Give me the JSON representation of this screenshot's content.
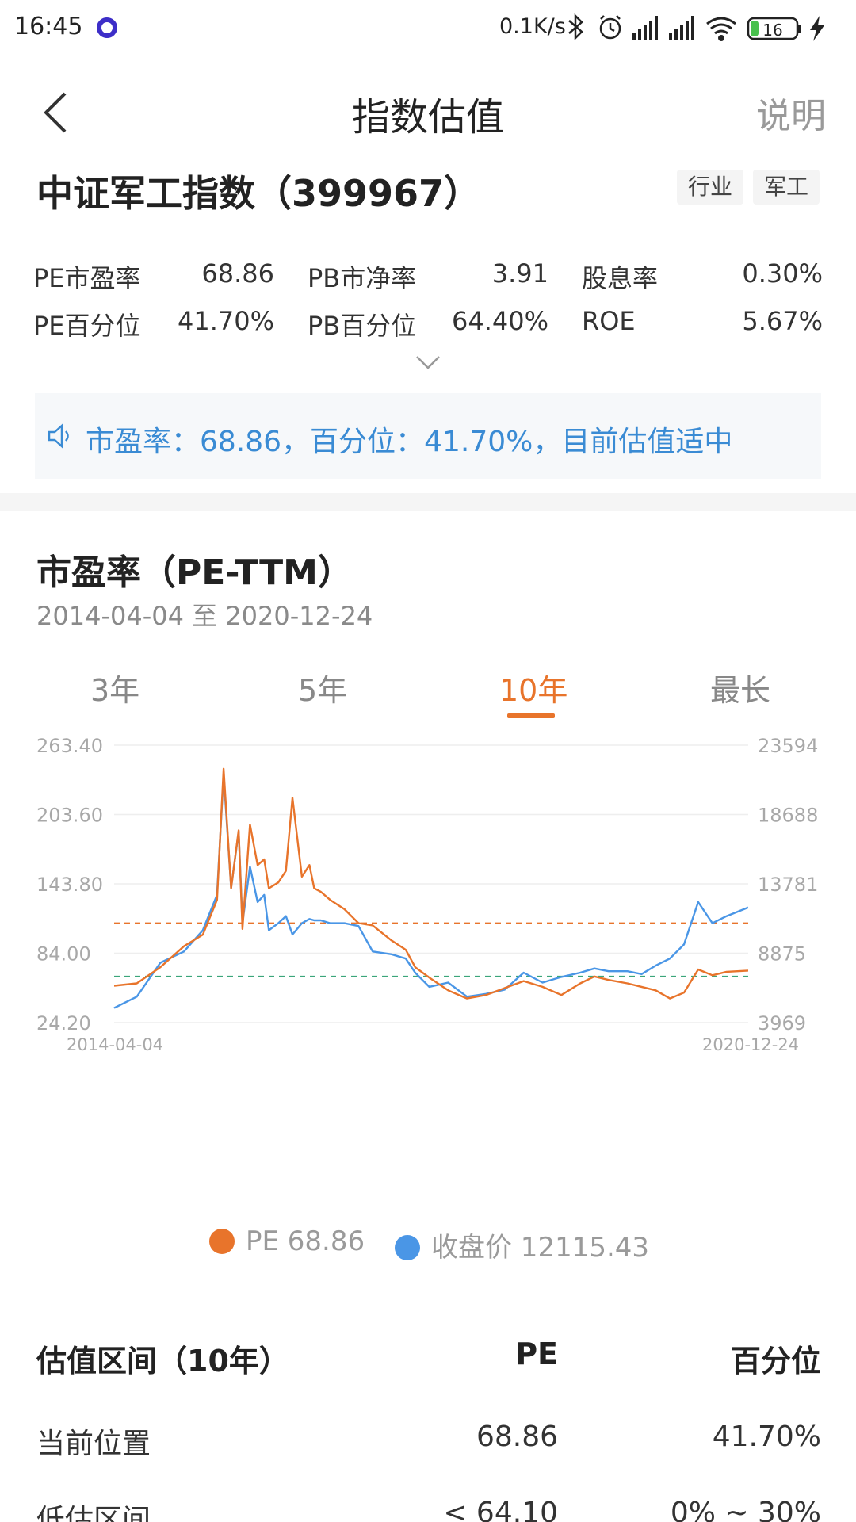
{
  "status_bar": {
    "time": "16:45",
    "net_speed": "0.1K/s",
    "battery": "16",
    "icons": [
      "bluetooth-icon",
      "alarm-icon",
      "signal-icon",
      "signal-icon",
      "wifi-icon",
      "battery-icon",
      "charging-icon"
    ]
  },
  "nav": {
    "title": "指数估值",
    "help": "说明"
  },
  "index": {
    "name": "中证军工指数（399967）",
    "tags": [
      "行业",
      "军工"
    ]
  },
  "metrics": [
    {
      "label": "PE市盈率",
      "value": "68.86"
    },
    {
      "label": "PB市净率",
      "value": "3.91"
    },
    {
      "label": "股息率",
      "value": "0.30%"
    },
    {
      "label": "PE百分位",
      "value": "41.70%"
    },
    {
      "label": "PB百分位",
      "value": "64.40%"
    },
    {
      "label": "ROE",
      "value": "5.67%"
    }
  ],
  "notice": {
    "text": "市盈率：68.86，百分位：41.70%，目前估值适中"
  },
  "pe_section": {
    "title": "市盈率（PE-TTM）",
    "range": "2014-04-04 至 2020-12-24",
    "tabs": [
      "3年",
      "5年",
      "10年",
      "最长"
    ],
    "active_tab": "10年"
  },
  "legend": {
    "pe": "PE 68.86",
    "close": "收盘价 12115.43"
  },
  "colors": {
    "pe": "#e8742b",
    "close": "#4a96e6",
    "accent": "#e8742b",
    "low_line": "#3aa57a",
    "notice_text": "#3a8bd4"
  },
  "chart_data": {
    "type": "line",
    "x_start": "2014-04-04",
    "x_end": "2020-12-24",
    "y_left_ticks": [
      "263.40",
      "203.60",
      "143.80",
      "84.00",
      "24.20"
    ],
    "y_right_ticks": [
      "23594",
      "18688",
      "13781",
      "8875",
      "3969"
    ],
    "y_left_range": [
      24.2,
      263.4
    ],
    "y_right_range": [
      3969,
      23594
    ],
    "reference_lines": [
      {
        "value": 110,
        "color": "#e8742b"
      },
      {
        "value": 64.1,
        "color": "#3aa57a"
      }
    ],
    "series": [
      {
        "name": "PE",
        "axis": "left",
        "x": [
          2014.26,
          2014.5,
          2014.75,
          2015.0,
          2015.2,
          2015.35,
          2015.42,
          2015.5,
          2015.58,
          2015.62,
          2015.7,
          2015.78,
          2015.85,
          2015.9,
          2016.0,
          2016.08,
          2016.15,
          2016.25,
          2016.33,
          2016.38,
          2016.45,
          2016.55,
          2016.7,
          2016.85,
          2017.0,
          2017.2,
          2017.35,
          2017.45,
          2017.6,
          2017.8,
          2018.0,
          2018.2,
          2018.4,
          2018.6,
          2018.8,
          2019.0,
          2019.2,
          2019.35,
          2019.5,
          2019.7,
          2019.85,
          2020.0,
          2020.15,
          2020.3,
          2020.45,
          2020.6,
          2020.75,
          2020.98
        ],
        "values": [
          56,
          58,
          72,
          90,
          100,
          130,
          243,
          140,
          190,
          105,
          195,
          160,
          165,
          140,
          145,
          155,
          218,
          150,
          160,
          140,
          137,
          130,
          122,
          110,
          108,
          95,
          87,
          72,
          63,
          52,
          45,
          48,
          54,
          60,
          55,
          48,
          58,
          64,
          61,
          58,
          55,
          52,
          45,
          50,
          70,
          65,
          68,
          69
        ]
      },
      {
        "name": "收盘价",
        "axis": "right",
        "x": [
          2014.26,
          2014.5,
          2014.75,
          2015.0,
          2015.2,
          2015.35,
          2015.42,
          2015.5,
          2015.58,
          2015.62,
          2015.7,
          2015.78,
          2015.85,
          2015.9,
          2016.0,
          2016.08,
          2016.15,
          2016.25,
          2016.33,
          2016.38,
          2016.45,
          2016.55,
          2016.7,
          2016.85,
          2017.0,
          2017.2,
          2017.35,
          2017.45,
          2017.6,
          2017.8,
          2018.0,
          2018.2,
          2018.4,
          2018.6,
          2018.8,
          2019.0,
          2019.2,
          2019.35,
          2019.5,
          2019.7,
          2019.85,
          2020.0,
          2020.15,
          2020.3,
          2020.45,
          2020.6,
          2020.75,
          2020.98
        ],
        "values": [
          5000,
          5800,
          8200,
          9000,
          10500,
          13000,
          21500,
          13500,
          17500,
          11000,
          15000,
          12500,
          13000,
          10500,
          11000,
          11500,
          10200,
          11000,
          11300,
          11200,
          11200,
          11000,
          11000,
          10800,
          9000,
          8800,
          8500,
          7500,
          6500,
          6800,
          5800,
          6000,
          6300,
          7500,
          6800,
          7200,
          7500,
          7800,
          7600,
          7600,
          7400,
          8000,
          8500,
          9500,
          12500,
          11000,
          11500,
          12115
        ]
      }
    ]
  },
  "valuation_table": {
    "headers": [
      "估值区间（10年）",
      "PE",
      "百分位"
    ],
    "rows": [
      {
        "label": "当前位置",
        "pe": "68.86",
        "pct": "41.70%"
      },
      {
        "label": "低估区间",
        "pe": "< 64.10",
        "pct": "0% ~ 30%"
      }
    ]
  }
}
